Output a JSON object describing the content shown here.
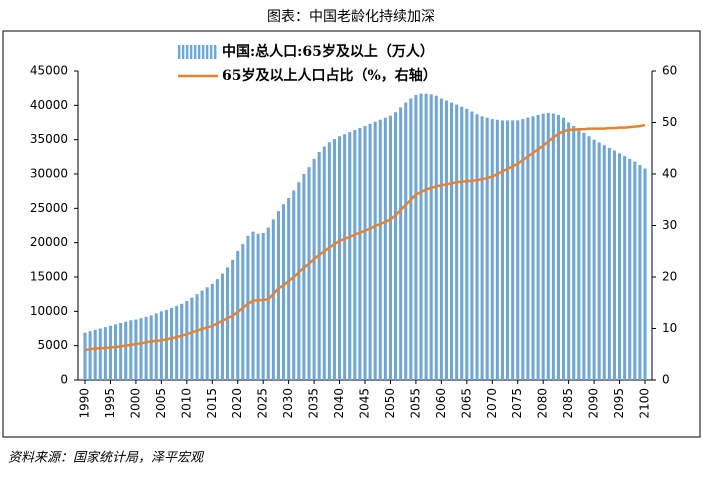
{
  "chart_data": {
    "type": "bar-line",
    "title": "图表：中国老龄化持续加深",
    "source": "资料来源：国家统计局，泽平宏观",
    "x": [
      1990,
      1991,
      1992,
      1993,
      1994,
      1995,
      1996,
      1997,
      1998,
      1999,
      2000,
      2001,
      2002,
      2003,
      2004,
      2005,
      2006,
      2007,
      2008,
      2009,
      2010,
      2011,
      2012,
      2013,
      2014,
      2015,
      2016,
      2017,
      2018,
      2019,
      2020,
      2021,
      2022,
      2023,
      2024,
      2025,
      2026,
      2027,
      2028,
      2029,
      2030,
      2031,
      2032,
      2033,
      2034,
      2035,
      2036,
      2037,
      2038,
      2039,
      2040,
      2041,
      2042,
      2043,
      2044,
      2045,
      2046,
      2047,
      2048,
      2049,
      2050,
      2051,
      2052,
      2053,
      2054,
      2055,
      2056,
      2057,
      2058,
      2059,
      2060,
      2061,
      2062,
      2063,
      2064,
      2065,
      2066,
      2067,
      2068,
      2069,
      2070,
      2071,
      2072,
      2073,
      2074,
      2075,
      2076,
      2077,
      2078,
      2079,
      2080,
      2081,
      2082,
      2083,
      2084,
      2085,
      2086,
      2087,
      2088,
      2089,
      2090,
      2091,
      2092,
      2093,
      2094,
      2095,
      2096,
      2097,
      2098,
      2099,
      2100
    ],
    "xlim": [
      1990,
      2100
    ],
    "xticks": [
      1990,
      1995,
      2000,
      2005,
      2010,
      2015,
      2020,
      2025,
      2030,
      2035,
      2040,
      2045,
      2050,
      2055,
      2060,
      2065,
      2070,
      2075,
      2080,
      2085,
      2090,
      2095,
      2100
    ],
    "ylim": [
      0,
      45000
    ],
    "yticks": [
      0,
      5000,
      10000,
      15000,
      20000,
      25000,
      30000,
      35000,
      40000,
      45000
    ],
    "y2lim": [
      0,
      60
    ],
    "y2ticks": [
      0,
      10,
      20,
      30,
      40,
      50,
      60
    ],
    "series": [
      {
        "name": "中国:总人口:65岁及以上（万人）",
        "type": "bar",
        "color": "#6fa6d8",
        "values": [
          6900,
          7100,
          7300,
          7500,
          7700,
          7900,
          8100,
          8300,
          8500,
          8700,
          8800,
          9000,
          9200,
          9400,
          9700,
          10000,
          10200,
          10500,
          10800,
          11100,
          11500,
          12000,
          12500,
          13000,
          13500,
          14000,
          14700,
          15500,
          16400,
          17500,
          18800,
          19800,
          21000,
          21600,
          21300,
          21400,
          22200,
          23400,
          24600,
          25600,
          26500,
          27600,
          28800,
          30000,
          31000,
          32200,
          33200,
          34000,
          34600,
          35100,
          35500,
          35800,
          36100,
          36400,
          36700,
          37000,
          37300,
          37600,
          37900,
          38200,
          38500,
          39000,
          39700,
          40400,
          41000,
          41500,
          41700,
          41700,
          41600,
          41400,
          41000,
          40700,
          40400,
          40100,
          39800,
          39500,
          39100,
          38700,
          38400,
          38200,
          38000,
          37900,
          37800,
          37800,
          37800,
          37800,
          38000,
          38200,
          38400,
          38600,
          38800,
          38900,
          38800,
          38600,
          38200,
          37500,
          37000,
          36500,
          36000,
          35500,
          35000,
          34600,
          34200,
          33800,
          33400,
          33000,
          32600,
          32200,
          31800,
          31300,
          30800
        ]
      },
      {
        "name": "65岁及以上人口占比（%，右轴）",
        "type": "line",
        "axis": "y2",
        "color": "#e8822e",
        "values": [
          5.8,
          6.0,
          6.1,
          6.2,
          6.2,
          6.3,
          6.4,
          6.5,
          6.7,
          6.8,
          7.0,
          7.1,
          7.3,
          7.5,
          7.6,
          7.7,
          7.9,
          8.1,
          8.3,
          8.6,
          8.9,
          9.2,
          9.6,
          9.9,
          10.2,
          10.5,
          11.0,
          11.5,
          12.0,
          12.5,
          13.2,
          14.0,
          14.8,
          15.4,
          15.5,
          15.5,
          15.7,
          16.7,
          17.8,
          18.4,
          19.2,
          20.0,
          20.9,
          21.8,
          22.6,
          23.5,
          24.3,
          25.0,
          25.7,
          26.4,
          27.0,
          27.4,
          27.8,
          28.2,
          28.6,
          29.0,
          29.4,
          29.9,
          30.3,
          30.7,
          31.2,
          32.0,
          33.0,
          34.0,
          35.0,
          36.0,
          36.5,
          37.0,
          37.3,
          37.6,
          37.8,
          38.0,
          38.2,
          38.4,
          38.5,
          38.6,
          38.7,
          38.8,
          39.0,
          39.2,
          39.5,
          40.0,
          40.5,
          41.0,
          41.5,
          42.0,
          42.7,
          43.4,
          44.1,
          44.8,
          45.5,
          46.3,
          47.1,
          47.8,
          48.3,
          48.6,
          48.6,
          48.7,
          48.7,
          48.8,
          48.8,
          48.8,
          48.8,
          48.9,
          48.9,
          49.0,
          49.0,
          49.1,
          49.2,
          49.3,
          49.5
        ]
      }
    ]
  }
}
